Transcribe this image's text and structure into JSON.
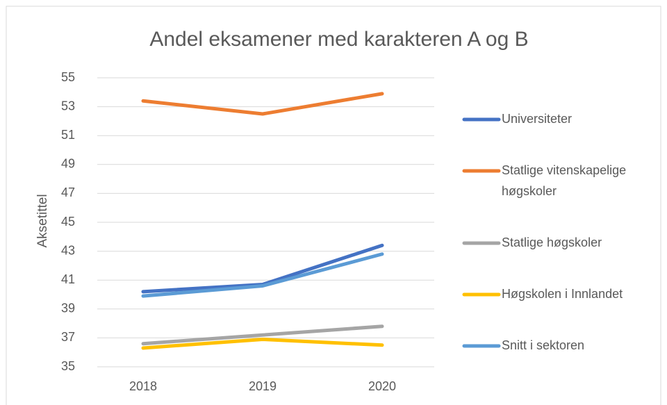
{
  "chart_data": {
    "type": "line",
    "title": "Andel eksamener med karakteren A og B",
    "y_label": "Aksetittel",
    "categories": [
      "2018",
      "2019",
      "2020"
    ],
    "series": [
      {
        "name": "Universiteter",
        "color": "#4472c4",
        "values": [
          40.2,
          40.7,
          43.4
        ]
      },
      {
        "name": "Statlige vitenskapelige høgskoler",
        "color": "#ed7d31",
        "values": [
          53.4,
          52.5,
          53.9
        ]
      },
      {
        "name": "Statlige høgskoler",
        "color": "#a5a5a5",
        "values": [
          36.6,
          37.2,
          37.8
        ]
      },
      {
        "name": "Høgskolen i Innlandet",
        "color": "#ffc000",
        "values": [
          36.3,
          36.9,
          36.5
        ]
      },
      {
        "name": "Snitt i sektoren",
        "color": "#5b9bd5",
        "values": [
          39.9,
          40.6,
          42.8
        ]
      }
    ],
    "ylim": [
      35,
      55
    ],
    "yticks": [
      35,
      37,
      39,
      41,
      43,
      45,
      47,
      49,
      51,
      53,
      55
    ],
    "grid": true,
    "legend": "right"
  }
}
